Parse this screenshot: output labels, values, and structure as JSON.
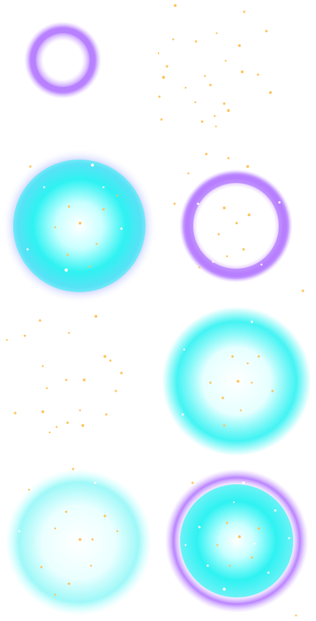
{
  "sheet": {
    "title": "",
    "frames": [
      {
        "id": 1,
        "layers": [
          "purple-ring"
        ]
      },
      {
        "id": 2,
        "layers": [
          "sparkles"
        ]
      },
      {
        "id": 3,
        "layers": [
          "cyan-disc",
          "blue-halo",
          "sparkles"
        ]
      },
      {
        "id": 4,
        "layers": [
          "purple-ring",
          "sparkles"
        ]
      },
      {
        "id": 5,
        "layers": [
          "sparkles"
        ]
      },
      {
        "id": 6,
        "layers": [
          "cyan-disc",
          "sparkles"
        ]
      },
      {
        "id": 7,
        "layers": [
          "cyan-disc-soft",
          "sparkles"
        ]
      },
      {
        "id": 8,
        "layers": [
          "purple-ring",
          "cyan-disc",
          "sparkles"
        ]
      }
    ]
  },
  "colors": {
    "background": "#ffffff",
    "purple": "#b57cff",
    "purple_glow": "#d9b8ff",
    "cyan": "#2ff2f2",
    "cyan_light": "#c8ffff",
    "blue_halo": "#a9b6ff",
    "spark_orange": "#ffc35a",
    "spark_white": "#ffffff"
  }
}
